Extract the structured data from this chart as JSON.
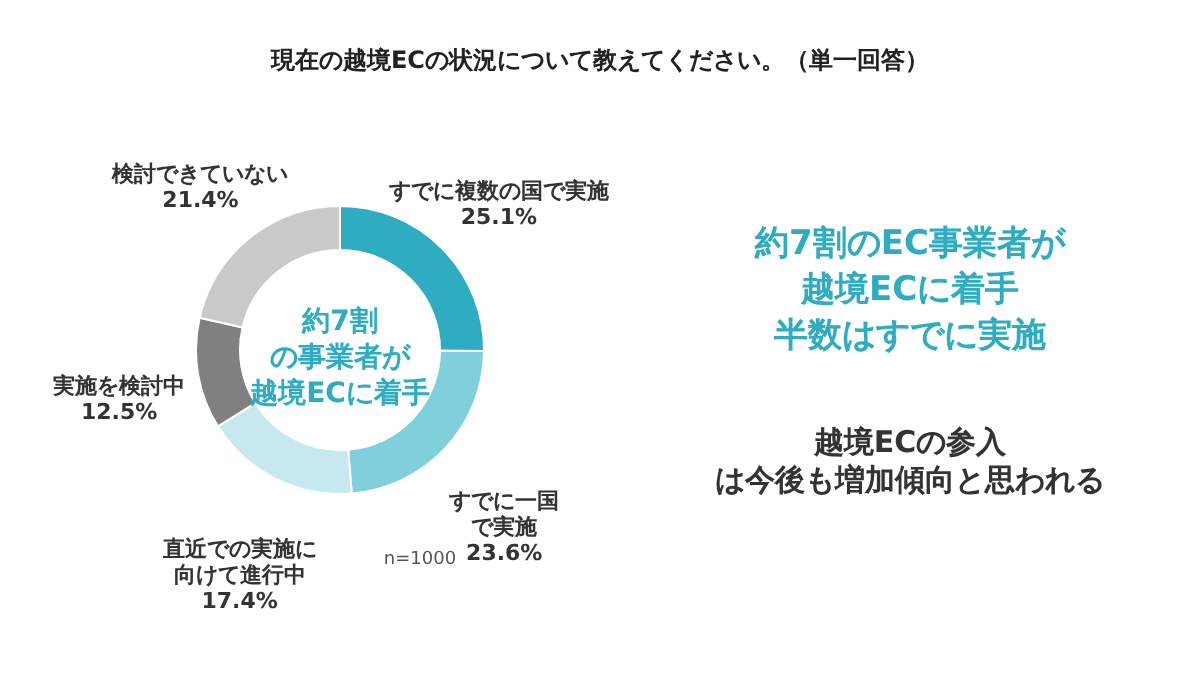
{
  "chart_data": {
    "type": "donut",
    "title": "現在の越境ECの状況について教えてください。（単一回答）",
    "categories": [
      "すでに複数の国で実施",
      "すでに一国で実施",
      "直近での実施に向けて進行中",
      "実施を検討中",
      "検討できていない"
    ],
    "values": [
      25.1,
      23.6,
      17.4,
      12.5,
      21.4
    ],
    "colors": [
      "#2eacc1",
      "#80d0dc",
      "#c6e9ef",
      "#808080",
      "#c9c9c9"
    ],
    "value_labels": [
      "25.1%",
      "23.6%",
      "17.4%",
      "12.5%",
      "21.4%"
    ],
    "annotations": [
      "約7割の事業者が越境ECに着手",
      "約7割のEC事業者が越境ECに着手半数はすでに実施",
      "越境ECの参入は今後も増加傾向と思われる",
      "n=1000"
    ]
  }
}
